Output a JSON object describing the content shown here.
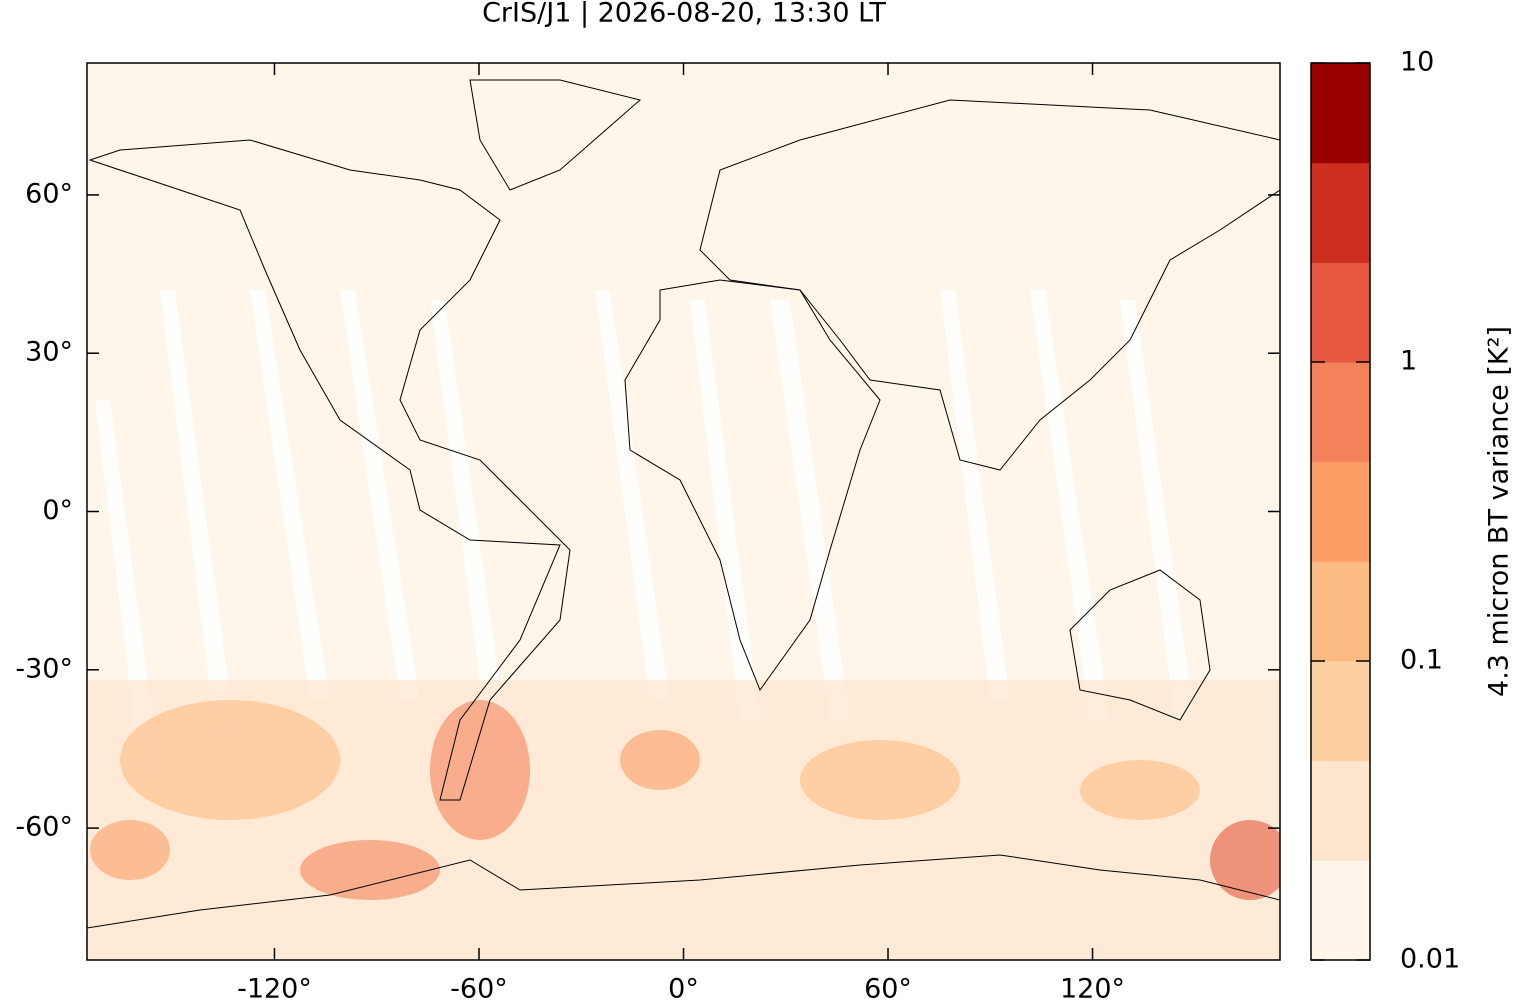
{
  "chart_data": {
    "type": "map",
    "title": "CrIS/J1 | 2026-08-20, 13:30 LT",
    "xlim": [
      -175,
      175
    ],
    "ylim": [
      -85,
      85
    ],
    "xticks": [
      {
        "value": -120,
        "label": "-120°"
      },
      {
        "value": -60,
        "label": "-60°"
      },
      {
        "value": 0,
        "label": "0°"
      },
      {
        "value": 60,
        "label": "60°"
      },
      {
        "value": 120,
        "label": "120°"
      }
    ],
    "yticks": [
      {
        "value": 60,
        "label": "60°"
      },
      {
        "value": 30,
        "label": "30°"
      },
      {
        "value": 0,
        "label": "0°"
      },
      {
        "value": -30,
        "label": "-30°"
      },
      {
        "value": -60,
        "label": "-60°"
      }
    ],
    "colorbar": {
      "label": "4.3 micron BT variance [K²]",
      "lim": [
        0.01,
        10
      ],
      "log": true,
      "ticks": [
        0.01,
        0.1,
        1,
        10
      ],
      "colors": [
        "#fff5eb",
        "#fee6ce",
        "#fdd0a2",
        "#fdbb84",
        "#fc9f67",
        "#f4835b",
        "#e5573f",
        "#cc2e20",
        "#990000"
      ]
    }
  }
}
